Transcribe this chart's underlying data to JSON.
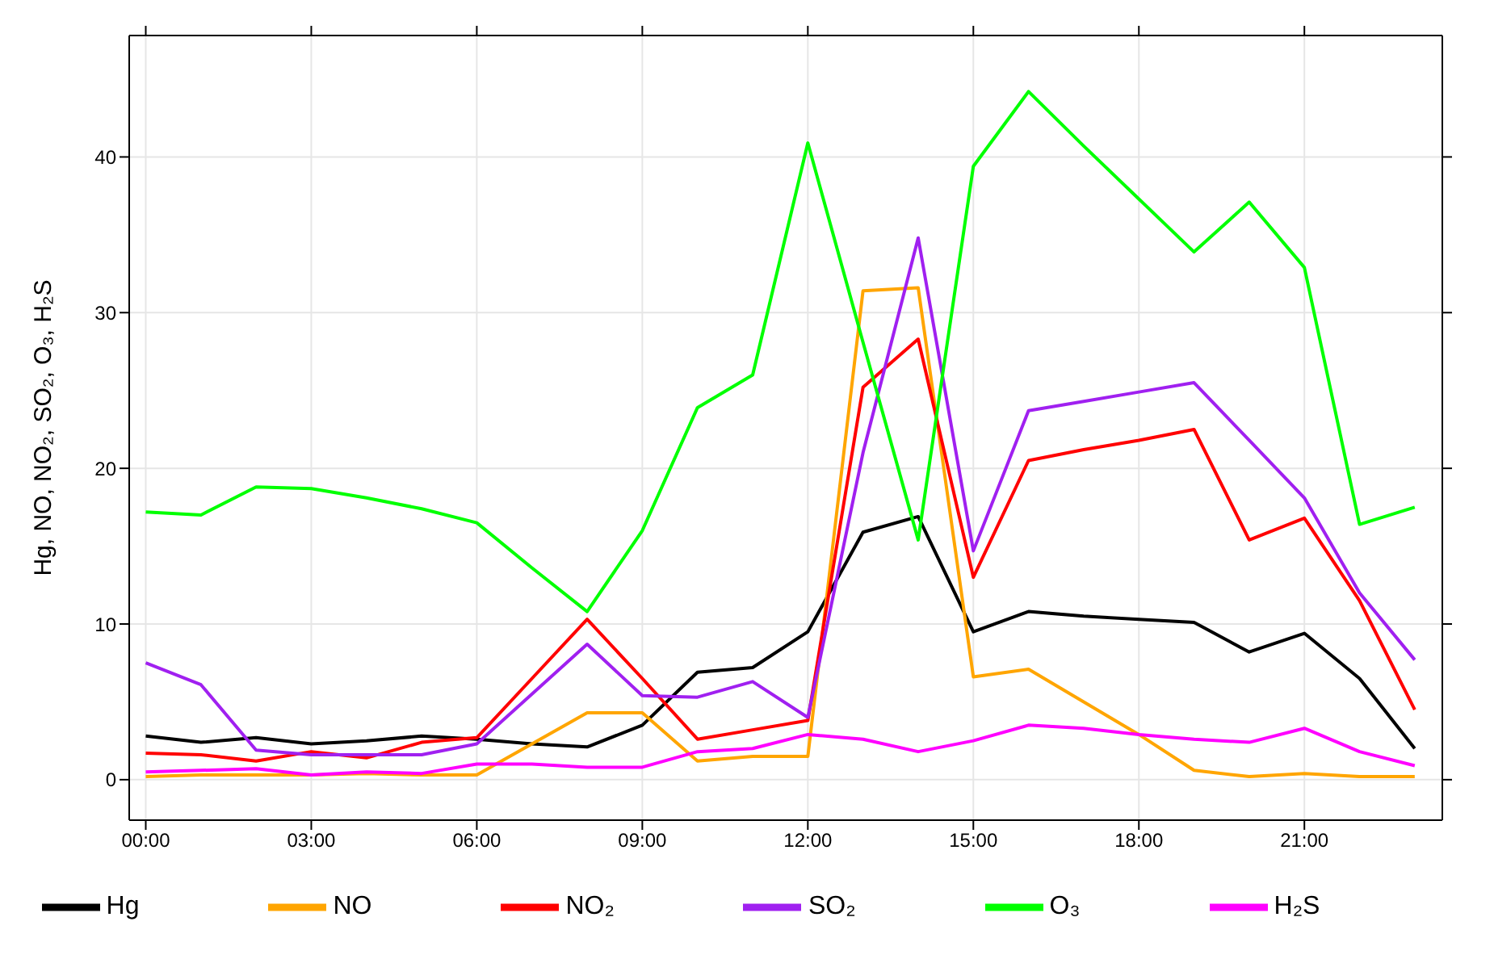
{
  "chart_data": {
    "type": "line",
    "ylabel": "Hg, NO, NO₂, SO₂, O₃, H₂S",
    "x": [
      0,
      1,
      2,
      3,
      4,
      5,
      6,
      7,
      8,
      9,
      10,
      11,
      12,
      13,
      14,
      15,
      16,
      17,
      18,
      19,
      20,
      21,
      22,
      23
    ],
    "xlim": [
      -0.3,
      23.5
    ],
    "xticks": [
      {
        "value": 0,
        "label": "00:00"
      },
      {
        "value": 3,
        "label": "03:00"
      },
      {
        "value": 6,
        "label": "06:00"
      },
      {
        "value": 9,
        "label": "09:00"
      },
      {
        "value": 12,
        "label": "12:00"
      },
      {
        "value": 15,
        "label": "15:00"
      },
      {
        "value": 18,
        "label": "18:00"
      },
      {
        "value": 21,
        "label": "21:00"
      }
    ],
    "ylim": [
      -2.6,
      47.8
    ],
    "yticks": [
      0,
      10,
      20,
      30,
      40
    ],
    "grid": true,
    "legend": "bottom",
    "marker": "none",
    "line_style": "solid",
    "series": [
      {
        "name": "Hg",
        "color": "#000000",
        "values": [
          2.8,
          2.4,
          2.7,
          2.3,
          2.5,
          2.8,
          2.6,
          2.3,
          2.1,
          3.5,
          6.9,
          7.2,
          9.5,
          15.9,
          16.9,
          9.5,
          10.8,
          10.5,
          10.3,
          10.1,
          8.2,
          9.4,
          6.5,
          2.0
        ]
      },
      {
        "name": "NO",
        "color": "#ffa500",
        "values": [
          0.2,
          0.3,
          0.3,
          0.3,
          0.4,
          0.3,
          0.3,
          2.3,
          4.3,
          4.3,
          1.2,
          1.5,
          1.5,
          31.4,
          31.6,
          6.6,
          7.1,
          5.0,
          2.9,
          0.6,
          0.2,
          0.4,
          0.2,
          0.2
        ]
      },
      {
        "name": "NO₂",
        "color": "#ff0000",
        "values": [
          1.7,
          1.6,
          1.2,
          1.8,
          1.4,
          2.4,
          2.7,
          6.5,
          10.3,
          6.5,
          2.6,
          3.2,
          3.8,
          25.2,
          28.3,
          13.0,
          20.5,
          21.2,
          21.8,
          22.5,
          15.4,
          16.8,
          11.5,
          4.5
        ]
      },
      {
        "name": "SO₂",
        "color": "#a020f0",
        "values": [
          7.5,
          6.1,
          1.9,
          1.6,
          1.6,
          1.6,
          2.3,
          5.5,
          8.7,
          5.4,
          5.3,
          6.3,
          4.0,
          21.0,
          34.8,
          14.7,
          23.7,
          24.3,
          24.9,
          25.5,
          21.8,
          18.1,
          12.0,
          7.7
        ]
      },
      {
        "name": "O₃",
        "color": "#00ff00",
        "values": [
          17.2,
          17.0,
          18.8,
          18.7,
          18.1,
          17.4,
          16.5,
          13.6,
          10.8,
          16.0,
          23.9,
          26.0,
          40.9,
          28.1,
          15.4,
          39.4,
          44.2,
          40.7,
          37.3,
          33.9,
          37.1,
          32.9,
          16.4,
          17.5
        ]
      },
      {
        "name": "H₂S",
        "color": "#ff00ff",
        "values": [
          0.5,
          0.6,
          0.7,
          0.3,
          0.5,
          0.4,
          1.0,
          1.0,
          0.8,
          0.8,
          1.8,
          2.0,
          2.9,
          2.6,
          1.8,
          2.5,
          3.5,
          3.3,
          2.9,
          2.6,
          2.4,
          3.3,
          1.8,
          0.9
        ]
      }
    ]
  }
}
